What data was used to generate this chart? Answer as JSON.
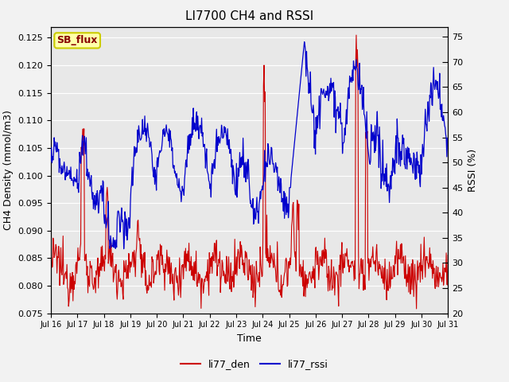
{
  "title": "LI7700 CH4 and RSSI",
  "xlabel": "Time",
  "ylabel_left": "CH4 Density (mmol/m3)",
  "ylabel_right": "RSSI (%)",
  "ylim_left": [
    0.075,
    0.127
  ],
  "ylim_right": [
    20,
    77
  ],
  "yticks_left": [
    0.075,
    0.08,
    0.085,
    0.09,
    0.095,
    0.1,
    0.105,
    0.11,
    0.115,
    0.12,
    0.125
  ],
  "yticks_right": [
    20,
    25,
    30,
    35,
    40,
    45,
    50,
    55,
    60,
    65,
    70,
    75
  ],
  "xtick_labels": [
    "Jul 16",
    "Jul 17",
    "Jul 18",
    "Jul 19",
    "Jul 20",
    "Jul 21",
    "Jul 22",
    "Jul 23",
    "Jul 24",
    "Jul 25",
    "Jul 26",
    "Jul 27",
    "Jul 28",
    "Jul 29",
    "Jul 30",
    "Jul 31"
  ],
  "legend_label_red": "li77_den",
  "legend_label_blue": "li77_rssi",
  "annotation_text": "SB_flux",
  "line_color_red": "#cc0000",
  "line_color_blue": "#0000cc",
  "plot_bg_color": "#e8e8e8",
  "fig_bg_color": "#f2f2f2",
  "annotation_fg": "#880000",
  "annotation_bg": "#ffffaa",
  "annotation_border": "#cccc00",
  "grid_color": "#ffffff",
  "title_fontsize": 11,
  "axis_label_fontsize": 9,
  "tick_fontsize": 8,
  "legend_fontsize": 9
}
